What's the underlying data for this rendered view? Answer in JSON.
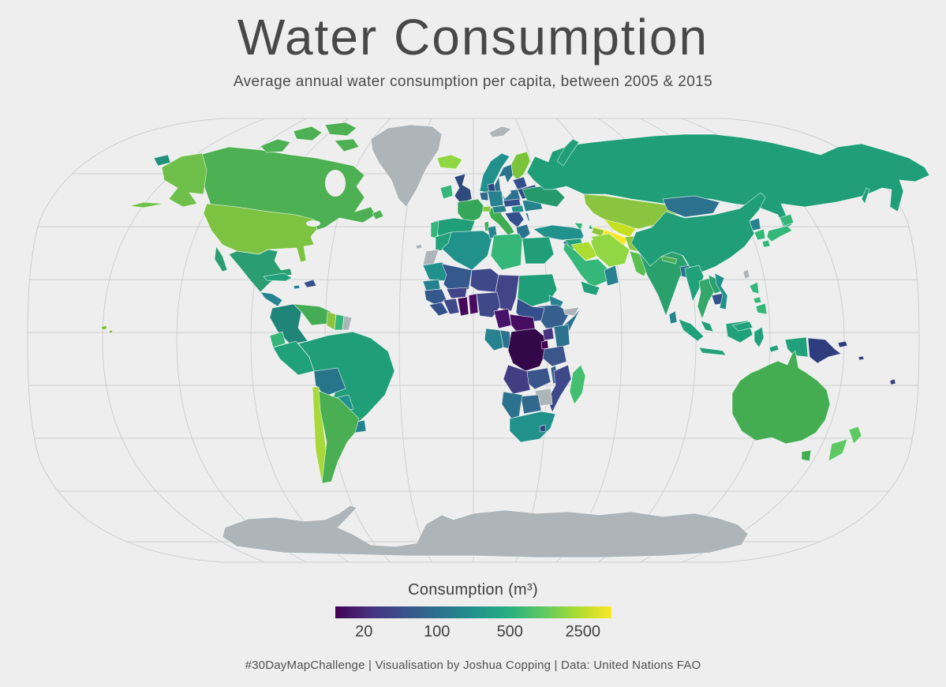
{
  "header": {
    "title": "Water Consumption",
    "subtitle": "Average annual water consumption per capita, between 2005 & 2015"
  },
  "legend": {
    "title": "Consumption (m³)",
    "ticks": [
      "20",
      "100",
      "500",
      "2500"
    ],
    "gradient": [
      "#440154",
      "#46327e",
      "#3b518b",
      "#2c718e",
      "#21918c",
      "#27ad81",
      "#5cc863",
      "#aadc32",
      "#fde725"
    ]
  },
  "footer": {
    "credit": "#30DayMapChallenge | Visualisation by Joshua Copping | Data: United Nations FAO"
  },
  "map": {
    "background": "#efeeee",
    "graticule_color": "#c9cdd0",
    "no_data_color": "#adb5b8",
    "regions": {
      "greenland": "#adb5b8",
      "antarctica": "#adb5b8",
      "svalbard": "#adb5b8",
      "canada": "#4db052",
      "alaska": "#6fc04a",
      "chukotka": "#21917c",
      "usa": "#7cc342",
      "hawaii": "#7cc342",
      "mexico": "#2a9d72",
      "guatemala": "#26828e",
      "panama": "#21a179",
      "cuba": "#21a179",
      "jamaica": "#26828e",
      "hispaniola": "#33508c",
      "colombia": "#1e8578",
      "venezuela": "#45ab55",
      "guyana": "#8bc53f",
      "suriname": "#35b779",
      "french_guiana": "#adb5b8",
      "ecuador": "#35b779",
      "peru": "#21a179",
      "brazil": "#1f9e77",
      "bolivia": "#26758b",
      "paraguay": "#21918c",
      "uruguay": "#26828e",
      "chile": "#a8d93a",
      "argentina": "#4aaf52",
      "iceland": "#90d743",
      "ireland": "#35b779",
      "uk": "#2e4a7d",
      "norway": "#21918c",
      "sweden": "#2c718e",
      "finland": "#7ac43c",
      "denmark": "#2e4a7d",
      "baltics": "#33508c",
      "belarus": "#2e4a7d",
      "poland": "#2c718e",
      "germany": "#26828e",
      "benelux": "#31688e",
      "france": "#35a75a",
      "spain": "#1f9e77",
      "portugal": "#35b779",
      "italy": "#3fae53",
      "switzerland": "#86c840",
      "austria": "#26828e",
      "czech_slovakia": "#33508c",
      "hungary": "#21918c",
      "balkans": "#33508c",
      "greece": "#2c718e",
      "romania": "#26828e",
      "bulgaria": "#26828e",
      "ukraine": "#25996c",
      "russia": "#1f9e77",
      "kazakhstan": "#8bc53f",
      "uzbekistan": "#c4e020",
      "turkmenistan": "#fde725",
      "kyrgyzstan": "#90d743",
      "tajikistan": "#7ad151",
      "georgia": "#35b779",
      "azerbaijan": "#8bc53f",
      "turkey": "#21918c",
      "levant": "#31688e",
      "syria": "#21a179",
      "iraq": "#addc30",
      "iran": "#90d743",
      "afghanistan": "#8bc53f",
      "pakistan": "#5bbf50",
      "india": "#2aa06d",
      "nepal": "#4ab055",
      "bangladesh": "#2c718e",
      "sri_lanka": "#26828e",
      "saudi_arabia": "#35b779",
      "yemen": "#21a179",
      "oman": "#26828e",
      "mongolia": "#2c718e",
      "china": "#1f9e78",
      "north_korea": "#26828e",
      "south_korea": "#35b779",
      "japan": "#35b779",
      "taiwan": "#adb5b8",
      "myanmar": "#21a179",
      "thailand": "#35a76a",
      "laos": "#2aa06d",
      "cambodia": "#33508c",
      "vietnam": "#21918c",
      "malaysia": "#21a179",
      "indonesia": "#21a179",
      "philippines": "#35b779",
      "papua_new_guinea": "#2e3d7d",
      "fiji": "#2e3d7d",
      "australia": "#44ad52",
      "new_zealand": "#5ec962",
      "morocco": "#21a179",
      "western_sahara": "#adb5b8",
      "algeria": "#21918c",
      "tunisia": "#26828e",
      "libya": "#35b779",
      "egypt": "#1f9e77",
      "mauritania": "#21918c",
      "senegal": "#26828e",
      "mali": "#35588d",
      "burkina_faso": "#414487",
      "niger": "#3f4889",
      "chad": "#414487",
      "sudan": "#1f9e77",
      "south_sudan": "#33508c",
      "eritrea": "#26828e",
      "ethiopia": "#355f8d",
      "somalia": "#2c718e",
      "somaliland": "#adb5b8",
      "guinea": "#35588d",
      "sierra_leone": "#33508c",
      "ivory_coast": "#3f4889",
      "ghana": "#46085c",
      "togo_benin": "#470d60",
      "nigeria": "#3f4889",
      "cameroon": "#451468",
      "central_african_republic": "#470d60",
      "gabon": "#26828e",
      "congo": "#2c718e",
      "dr_congo": "#320849",
      "uganda": "#46327e",
      "kenya": "#2c718e",
      "rwanda_burundi": "#440154",
      "tanzania": "#3b568b",
      "angola": "#433d84",
      "zambia": "#39558c",
      "malawi": "#355f8d",
      "mozambique": "#3f4889",
      "zimbabwe": "#adb5b8",
      "botswana": "#31688e",
      "namibia": "#2c718e",
      "south_africa": "#21918c",
      "lesotho": "#2e4a7d",
      "madagascar": "#44bf70",
      "canary": "#adb5b8"
    }
  }
}
